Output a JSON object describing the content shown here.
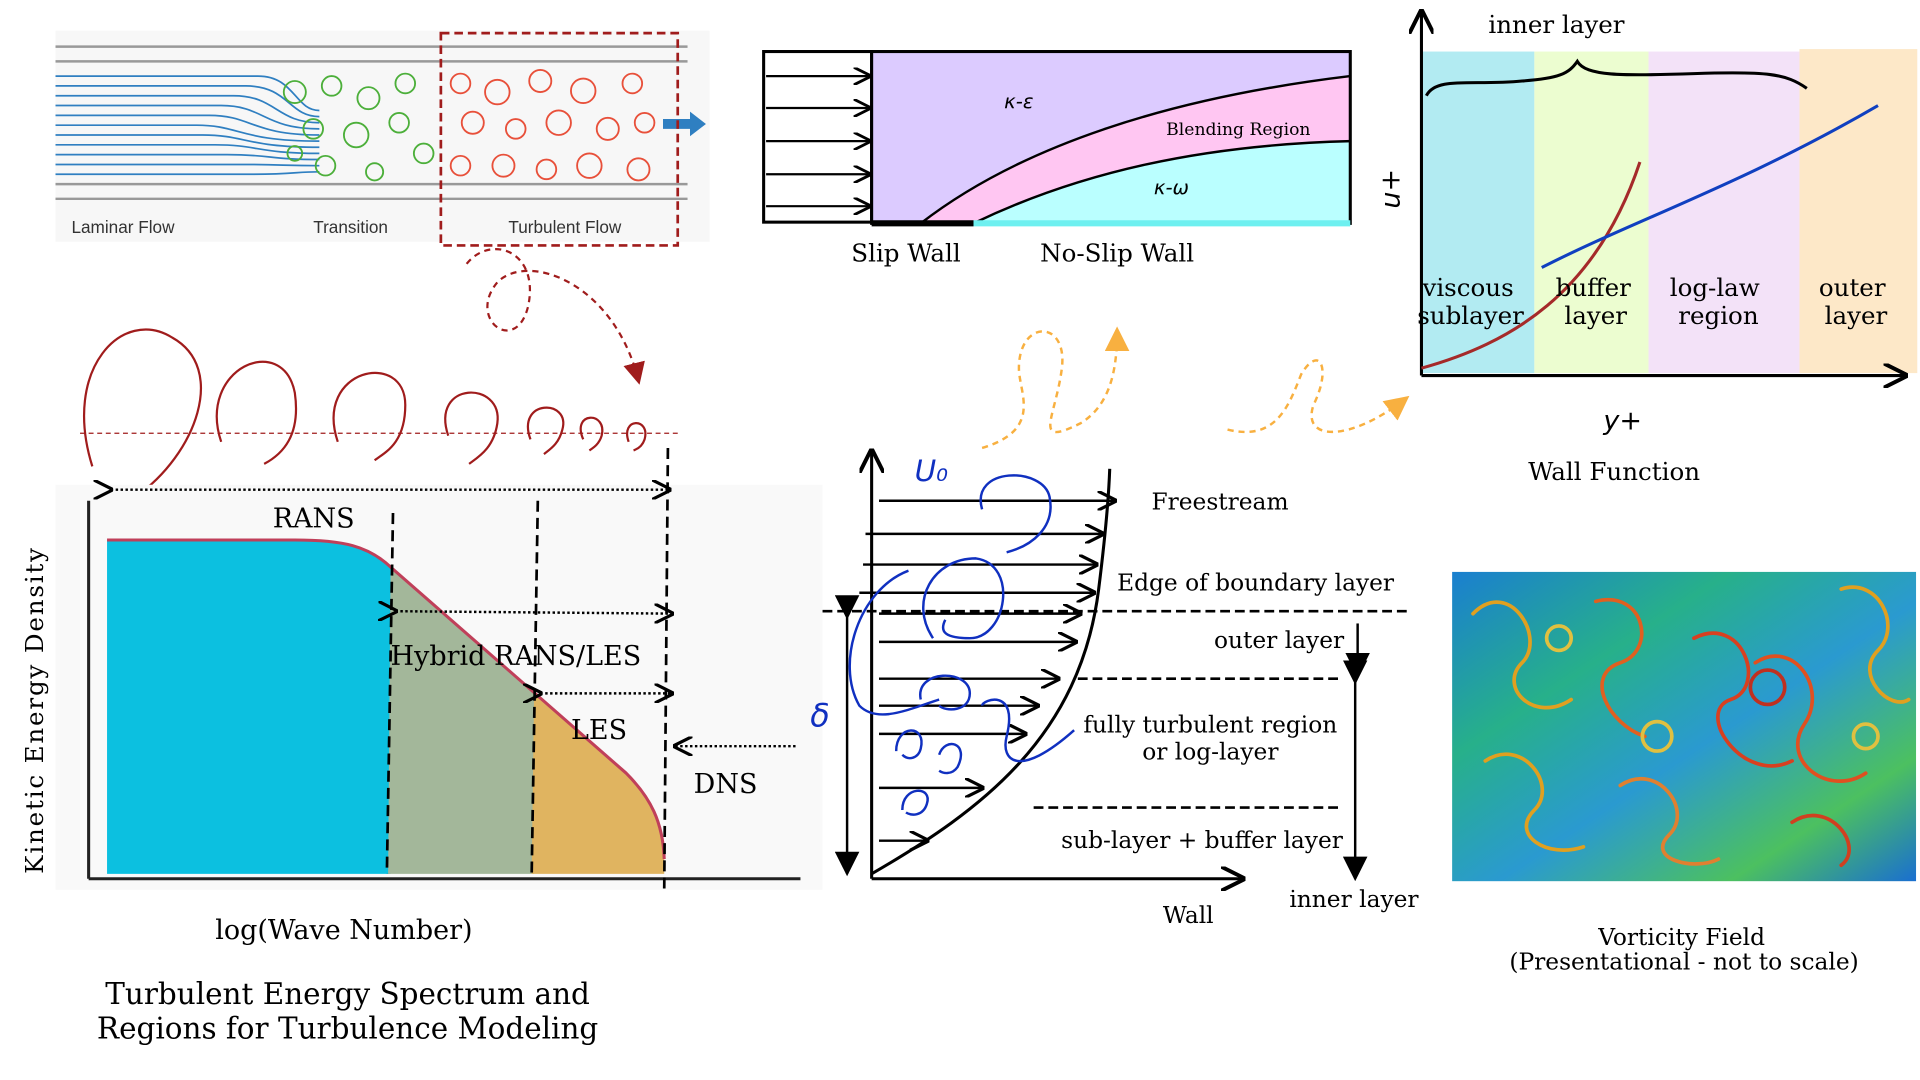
{
  "flow_regimes": {
    "labels": [
      "Laminar Flow",
      "Transition",
      "Turbulent Flow"
    ],
    "colors": {
      "laminar": "#2f7fc1",
      "transition": "#4caf3a",
      "turbulent": "#e8503a",
      "highlight": "#a01c1c"
    }
  },
  "blending": {
    "k_epsilon": "κ-ε",
    "blending_region": "Blending Region",
    "k_omega": "κ-ω",
    "slip_wall": "Slip Wall",
    "no_slip_wall": "No-Slip Wall",
    "colors": {
      "k_epsilon": "#dccbff",
      "blending": "#ffc6f2",
      "k_omega": "#baffff"
    }
  },
  "wall_function": {
    "inner_layer": "inner layer",
    "y_label": "u+",
    "x_label": "y+",
    "regions": [
      {
        "line1": "viscous",
        "line2": "sublayer",
        "color": "#b2ebf2"
      },
      {
        "line1": "buffer",
        "line2": "layer",
        "color": "#ecfdd0"
      },
      {
        "line1": "log-law",
        "line2": "region",
        "color": "#f3e2f8"
      },
      {
        "line1": "outer",
        "line2": "layer",
        "color": "#fde8c8"
      }
    ],
    "caption": "Wall Function"
  },
  "spectrum": {
    "y_label": "Kinetic Energy Density",
    "x_label": "log(Wave Number)",
    "rans": "RANS",
    "hybrid": "Hybrid RANS/LES",
    "les": "LES",
    "dns": "DNS",
    "caption_line1": "Turbulent Energy Spectrum and",
    "caption_line2": "Regions for Turbulence Modeling",
    "colors": {
      "rans": "#0cc0e0",
      "hybrid": "#a3b79a",
      "les": "#e0b460",
      "curve": "#c0405a"
    }
  },
  "boundary_layer": {
    "u0": "U₀",
    "delta": "δ",
    "freestream": "Freestream",
    "edge": "Edge of boundary layer",
    "outer_layer": "outer layer",
    "log_layer_line1": "fully turbulent region",
    "log_layer_line2": "or log-layer",
    "sublayer": "sub-layer + buffer layer",
    "inner_layer": "inner layer",
    "wall": "Wall"
  },
  "vorticity": {
    "caption_line1": "Vorticity Field",
    "caption_line2": "(Presentational - not to scale)"
  }
}
